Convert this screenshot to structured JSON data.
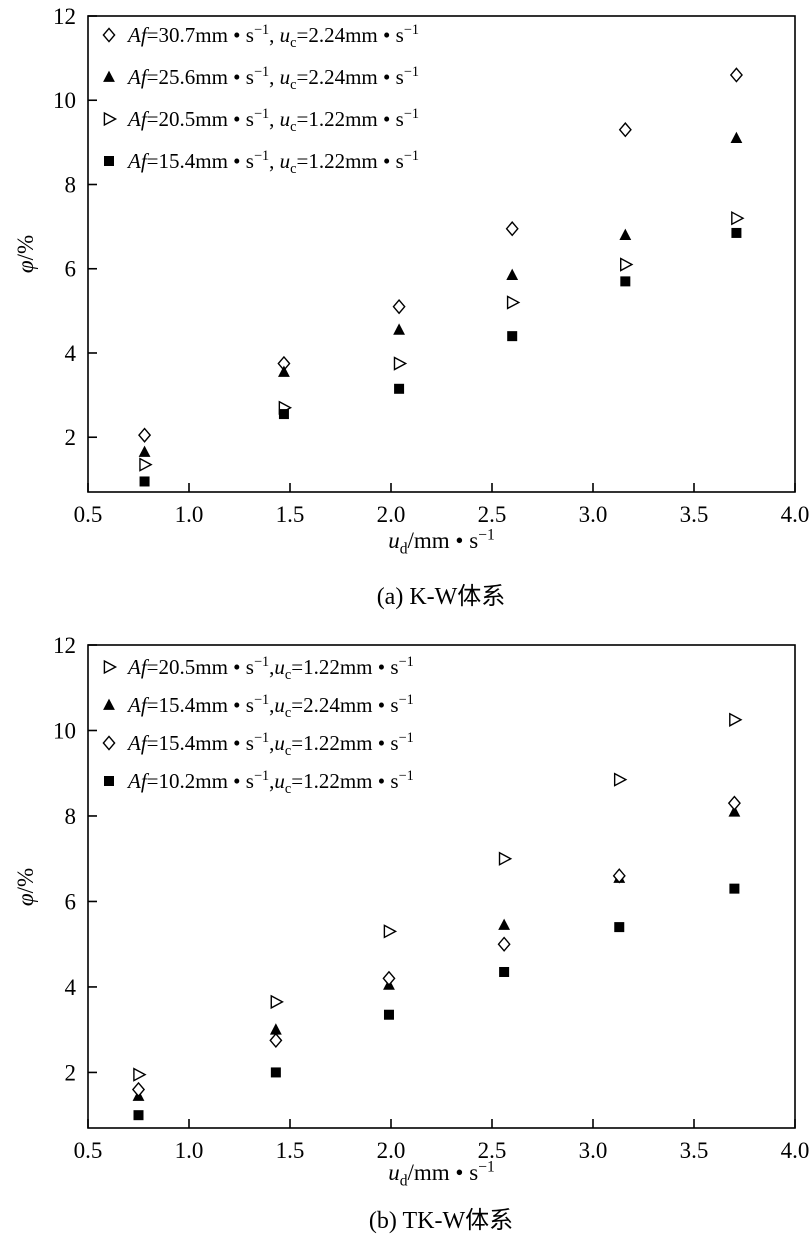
{
  "page": {
    "background": "#ffffff",
    "foreground": "#000000"
  },
  "chart_data": [
    {
      "type": "scatter",
      "caption": "(a) K-W体系",
      "xlabel": {
        "var": "u",
        "sub": "d",
        "unit": "/mm • s",
        "exp": "−1"
      },
      "ylabel": {
        "sym": "φ",
        "rest": "/%"
      },
      "xlim": [
        0.5,
        4.0
      ],
      "ylim": [
        0.7,
        12
      ],
      "xticks": [
        0.5,
        1.0,
        1.5,
        2.0,
        2.5,
        3.0,
        3.5,
        4.0
      ],
      "xtick_labels": [
        "0.5",
        "1.0",
        "1.5",
        "2.0",
        "2.5",
        "3.0",
        "3.5",
        "4.0"
      ],
      "yticks": [
        2,
        4,
        6,
        8,
        10,
        12
      ],
      "ytick_labels": [
        "2",
        "4",
        "6",
        "8",
        "10",
        "12"
      ],
      "grid": false,
      "legend_position": "top-left-inside",
      "legend_sep": ", ",
      "legend_format": {
        "af_prefix": "Af=",
        "uc_prefix": "uc=",
        "unit": "mm • s",
        "exp": "−1"
      },
      "series": [
        {
          "marker": "diamond-open",
          "af": "30.7",
          "uc": "2.24",
          "x": [
            0.78,
            1.47,
            2.04,
            2.6,
            3.16,
            3.71
          ],
          "y": [
            2.05,
            3.75,
            5.1,
            6.95,
            9.3,
            10.6
          ]
        },
        {
          "marker": "triangle-filled",
          "af": "25.6",
          "uc": "2.24",
          "x": [
            0.78,
            1.47,
            2.04,
            2.6,
            3.16,
            3.71
          ],
          "y": [
            1.65,
            3.55,
            4.55,
            5.85,
            6.8,
            9.1
          ]
        },
        {
          "marker": "triangle-right-open",
          "af": "20.5",
          "uc": "1.22",
          "x": [
            0.78,
            1.47,
            2.04,
            2.6,
            3.16,
            3.71
          ],
          "y": [
            1.35,
            2.7,
            3.75,
            5.2,
            6.1,
            7.2
          ]
        },
        {
          "marker": "square-filled",
          "af": "15.4",
          "uc": "1.22",
          "x": [
            0.78,
            1.47,
            2.04,
            2.6,
            3.16,
            3.71
          ],
          "y": [
            0.95,
            2.55,
            3.15,
            4.4,
            5.7,
            6.85
          ]
        }
      ]
    },
    {
      "type": "scatter",
      "caption": "(b) TK-W体系",
      "xlabel": {
        "var": "u",
        "sub": "d",
        "unit": "/mm • s",
        "exp": "−1"
      },
      "ylabel": {
        "sym": "φ",
        "rest": "/%"
      },
      "xlim": [
        0.5,
        4.0
      ],
      "ylim": [
        0.7,
        12
      ],
      "xticks": [
        0.5,
        1.0,
        1.5,
        2.0,
        2.5,
        3.0,
        3.5,
        4.0
      ],
      "xtick_labels": [
        "0.5",
        "1.0",
        "1.5",
        "2.0",
        "2.5",
        "3.0",
        "3.5",
        "4.0"
      ],
      "yticks": [
        2,
        4,
        6,
        8,
        10,
        12
      ],
      "ytick_labels": [
        "2",
        "4",
        "6",
        "8",
        "10",
        "12"
      ],
      "grid": false,
      "legend_position": "top-left-inside",
      "legend_sep": ",",
      "legend_format": {
        "af_prefix": "Af=",
        "uc_prefix": "uc=",
        "unit": "mm • s",
        "exp": "−1"
      },
      "series": [
        {
          "marker": "triangle-right-open",
          "af": "20.5",
          "uc": "1.22",
          "x": [
            0.75,
            1.43,
            1.99,
            2.56,
            3.13,
            3.7
          ],
          "y": [
            1.95,
            3.65,
            5.3,
            7.0,
            8.85,
            10.25
          ]
        },
        {
          "marker": "triangle-filled",
          "af": "15.4",
          "uc": "2.24",
          "x": [
            0.75,
            1.43,
            1.99,
            2.56,
            3.13,
            3.7
          ],
          "y": [
            1.45,
            3.0,
            4.05,
            5.45,
            6.55,
            8.1
          ]
        },
        {
          "marker": "diamond-open",
          "af": "15.4",
          "uc": "1.22",
          "x": [
            0.75,
            1.43,
            1.99,
            2.56,
            3.13,
            3.7
          ],
          "y": [
            1.6,
            2.75,
            4.2,
            5.0,
            6.6,
            8.3
          ]
        },
        {
          "marker": "square-filled",
          "af": "10.2",
          "uc": "1.22",
          "x": [
            0.75,
            1.43,
            1.99,
            2.56,
            3.13,
            3.7
          ],
          "y": [
            1.0,
            2.0,
            3.35,
            4.35,
            5.4,
            6.3
          ]
        }
      ]
    }
  ]
}
